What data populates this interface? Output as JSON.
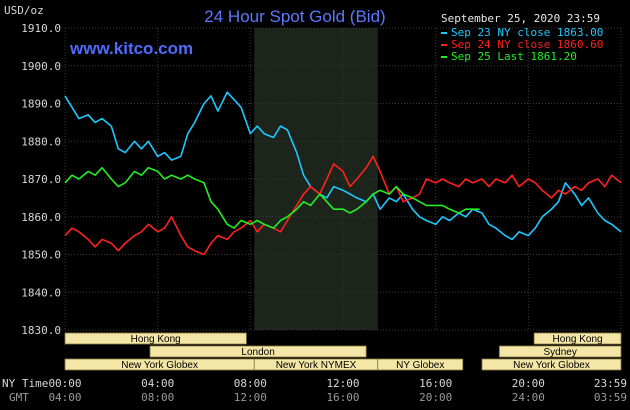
{
  "header": {
    "title": "24 Hour Spot Gold (Bid)",
    "website": "www.kitco.com",
    "date": "September 25, 2020 23:59"
  },
  "axis": {
    "y_unit": "USD/oz",
    "ny_time_label": "NY Time",
    "gmt_label": "GMT"
  },
  "legend": [
    {
      "text": "Sep 23 NY close 1863.00",
      "color": "#1ec8ff"
    },
    {
      "text": "Sep 24 NY close 1860.60",
      "color": "#ff2020"
    },
    {
      "text": "Sep 25 Last 1861.20",
      "color": "#22ee22"
    }
  ],
  "markets": [
    {
      "name": "Hong Kong",
      "start": 0,
      "end": 7.83,
      "row": 0
    },
    {
      "name": "Hong Kong",
      "start": 20.25,
      "end": 24,
      "row": 0
    },
    {
      "name": "London",
      "start": 3.67,
      "end": 13.0,
      "row": 1
    },
    {
      "name": "Sydney",
      "start": 18.75,
      "end": 24,
      "row": 1
    },
    {
      "name": "New York Globex",
      "start": 0,
      "end": 8.17,
      "row": 2
    },
    {
      "name": "New York NYMEX",
      "start": 8.17,
      "end": 13.5,
      "row": 2
    },
    {
      "name": "NY Globex",
      "start": 13.5,
      "end": 17.17,
      "row": 2
    },
    {
      "name": "New York Globex",
      "start": 18.0,
      "end": 24,
      "row": 2
    }
  ],
  "chart_data": {
    "type": "line",
    "title": "24 Hour Spot Gold (Bid)",
    "ylabel": "USD/oz",
    "ylim": [
      1830,
      1910
    ],
    "xlim": [
      0,
      24
    ],
    "y_ticks": [
      "1830.0",
      "1840.0",
      "1850.0",
      "1860.0",
      "1870.0",
      "1880.0",
      "1890.0",
      "1900.0",
      "1910.0"
    ],
    "x_ticks_ny": [
      "00:00",
      "04:00",
      "08:00",
      "12:00",
      "16:00",
      "20:00",
      "23:59"
    ],
    "x_ticks_gmt": [
      "04:00",
      "08:00",
      "12:00",
      "16:00",
      "20:00",
      "24:00",
      "03:59"
    ],
    "shaded_region": [
      8.17,
      13.5
    ],
    "grid": true,
    "series": [
      {
        "name": "Sep 23 NY close 1863.00",
        "color": "#1ec8ff",
        "x": [
          0,
          0.3,
          0.6,
          1.0,
          1.3,
          1.6,
          2.0,
          2.3,
          2.6,
          3.0,
          3.3,
          3.6,
          4.0,
          4.3,
          4.6,
          5.0,
          5.3,
          5.6,
          6.0,
          6.3,
          6.6,
          7.0,
          7.3,
          7.6,
          8.0,
          8.3,
          8.6,
          9.0,
          9.3,
          9.6,
          10.0,
          10.3,
          10.6,
          11.0,
          11.3,
          11.6,
          12.0,
          12.3,
          12.6,
          13.0,
          13.3,
          13.6,
          14.0,
          14.3,
          14.6,
          15.0,
          15.3,
          15.6,
          16.0,
          16.3,
          16.6,
          17.0,
          17.3,
          17.6,
          18.0,
          18.3,
          18.6,
          19.0,
          19.3,
          19.6,
          20.0,
          20.3,
          20.6,
          21.0,
          21.3,
          21.6,
          22.0,
          22.3,
          22.6,
          23.0,
          23.3,
          23.6,
          24.0
        ],
        "y": [
          1892,
          1889,
          1886,
          1887,
          1885,
          1886,
          1884,
          1878,
          1877,
          1880,
          1878,
          1880,
          1876,
          1877,
          1875,
          1876,
          1882,
          1885,
          1890,
          1892,
          1888,
          1893,
          1891,
          1889,
          1882,
          1884,
          1882,
          1881,
          1884,
          1883,
          1877,
          1871,
          1868,
          1866,
          1865,
          1868,
          1867,
          1866,
          1865,
          1864,
          1866,
          1862,
          1865,
          1864,
          1866,
          1862,
          1860,
          1859,
          1858,
          1860,
          1859,
          1861,
          1860,
          1862,
          1861,
          1858,
          1857,
          1855,
          1854,
          1856,
          1855,
          1857,
          1860,
          1862,
          1864,
          1869,
          1866,
          1863,
          1865,
          1861,
          1859,
          1858,
          1856
        ]
      },
      {
        "name": "Sep 24 NY close 1860.60",
        "color": "#ff2020",
        "x": [
          0,
          0.3,
          0.6,
          1.0,
          1.3,
          1.6,
          2.0,
          2.3,
          2.6,
          3.0,
          3.3,
          3.6,
          4.0,
          4.3,
          4.6,
          5.0,
          5.3,
          5.6,
          6.0,
          6.3,
          6.6,
          7.0,
          7.3,
          7.6,
          8.0,
          8.3,
          8.6,
          9.0,
          9.3,
          9.6,
          10.0,
          10.3,
          10.6,
          11.0,
          11.3,
          11.6,
          12.0,
          12.3,
          12.6,
          13.0,
          13.3,
          13.6,
          14.0,
          14.3,
          14.6,
          15.0,
          15.3,
          15.6,
          16.0,
          16.3,
          16.6,
          17.0,
          17.3,
          17.6,
          18.0,
          18.3,
          18.6,
          19.0,
          19.3,
          19.6,
          20.0,
          20.3,
          20.6,
          21.0,
          21.3,
          21.6,
          22.0,
          22.3,
          22.6,
          23.0,
          23.3,
          23.6,
          24.0
        ],
        "y": [
          1855,
          1857,
          1856,
          1854,
          1852,
          1854,
          1853,
          1851,
          1853,
          1855,
          1856,
          1858,
          1856,
          1857,
          1860,
          1855,
          1852,
          1851,
          1850,
          1853,
          1855,
          1854,
          1856,
          1857,
          1859,
          1856,
          1858,
          1857,
          1856,
          1859,
          1863,
          1866,
          1868,
          1866,
          1870,
          1874,
          1872,
          1868,
          1870,
          1873,
          1876,
          1872,
          1866,
          1868,
          1864,
          1865,
          1866,
          1870,
          1869,
          1870,
          1869,
          1868,
          1870,
          1869,
          1870,
          1868,
          1870,
          1869,
          1871,
          1868,
          1870,
          1869,
          1867,
          1865,
          1867,
          1866,
          1868,
          1867,
          1869,
          1870,
          1868,
          1871,
          1869
        ]
      },
      {
        "name": "Sep 25 Last 1861.20",
        "color": "#22ee22",
        "x": [
          0,
          0.3,
          0.6,
          1.0,
          1.3,
          1.6,
          2.0,
          2.3,
          2.6,
          3.0,
          3.3,
          3.6,
          4.0,
          4.3,
          4.6,
          5.0,
          5.3,
          5.6,
          6.0,
          6.3,
          6.6,
          7.0,
          7.3,
          7.6,
          8.0,
          8.3,
          8.6,
          9.0,
          9.3,
          9.6,
          10.0,
          10.3,
          10.6,
          11.0,
          11.3,
          11.6,
          12.0,
          12.3,
          12.6,
          13.0,
          13.3,
          13.6,
          14.0,
          14.3,
          14.6,
          15.0,
          15.3,
          15.6,
          16.0,
          16.3,
          16.6,
          17.0,
          17.3,
          17.6,
          17.9
        ],
        "y": [
          1869,
          1871,
          1870,
          1872,
          1871,
          1873,
          1870,
          1868,
          1869,
          1872,
          1871,
          1873,
          1872,
          1870,
          1871,
          1870,
          1871,
          1870,
          1869,
          1864,
          1862,
          1858,
          1857,
          1859,
          1858,
          1859,
          1858,
          1857,
          1859,
          1860,
          1862,
          1864,
          1863,
          1866,
          1864,
          1862,
          1862,
          1861,
          1862,
          1864,
          1866,
          1867,
          1866,
          1868,
          1866,
          1865,
          1864,
          1863,
          1863,
          1863,
          1862,
          1861,
          1862,
          1862,
          1862
        ]
      }
    ]
  }
}
